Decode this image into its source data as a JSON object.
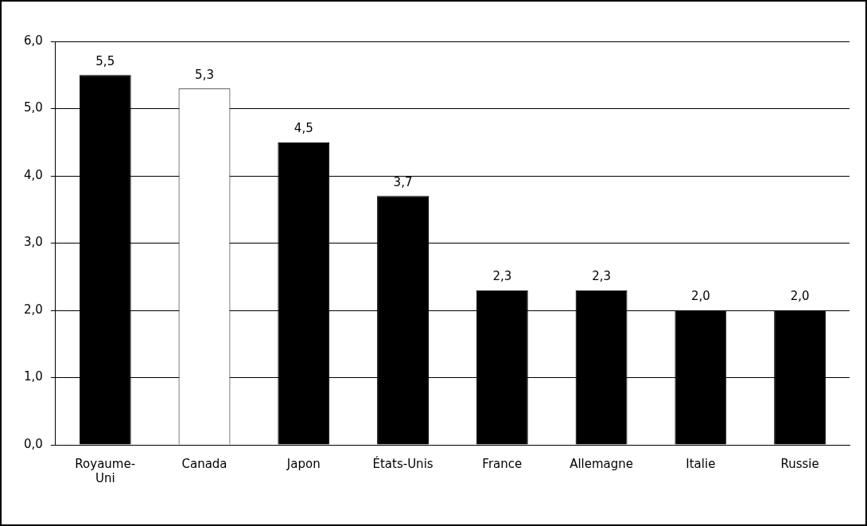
{
  "chart_data": {
    "type": "bar",
    "categories": [
      "Royaume-Uni",
      "Canada",
      "Japon",
      "États-Unis",
      "France",
      "Allemagne",
      "Italie",
      "Russie"
    ],
    "values": [
      5.5,
      5.3,
      4.5,
      3.7,
      2.3,
      2.3,
      2.0,
      2.0
    ],
    "colors": [
      "#000000",
      "#ffffff",
      "#000000",
      "#000000",
      "#000000",
      "#000000",
      "#000000",
      "#000000"
    ],
    "value_labels": [
      "5,5",
      "5,3",
      "4,5",
      "3,7",
      "2,3",
      "2,3",
      "2,0",
      "2,0"
    ],
    "ylim": [
      0,
      6
    ],
    "yticks": [
      {
        "value": 0,
        "label": "0,0"
      },
      {
        "value": 1,
        "label": "1,0"
      },
      {
        "value": 2,
        "label": "2,0"
      },
      {
        "value": 3,
        "label": "3,0"
      },
      {
        "value": 4,
        "label": "4,0"
      },
      {
        "value": 5,
        "label": "5,0"
      },
      {
        "value": 6,
        "label": "6,0"
      }
    ],
    "grid": "y",
    "legend": false
  }
}
